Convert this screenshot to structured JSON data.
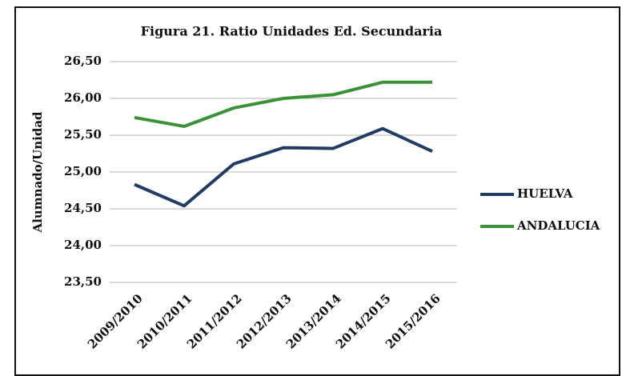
{
  "chart_data": {
    "type": "line",
    "title": "Figura 21. Ratio Unidades  Ed. Secundaria",
    "y_label": "Alumnado/Unidad",
    "categories": [
      "2009/2010",
      "2010/2011",
      "2011/2012",
      "2012/2013",
      "2013/2014",
      "2014/2015",
      "2015/2016"
    ],
    "series": [
      {
        "name": "HUELVA",
        "color": "#1f3d63",
        "values": [
          24.83,
          24.54,
          25.11,
          25.33,
          25.32,
          25.59,
          25.28
        ]
      },
      {
        "name": "ANDALUCIA",
        "color": "#3a9136",
        "values": [
          25.74,
          25.62,
          25.87,
          26.0,
          26.05,
          26.22,
          26.22
        ]
      }
    ],
    "ylim": [
      23.5,
      26.5
    ],
    "yticks": [
      {
        "value": 23.5,
        "label": "23,50"
      },
      {
        "value": 24.0,
        "label": "24,00"
      },
      {
        "value": 24.5,
        "label": "24,50"
      },
      {
        "value": 25.0,
        "label": "25,00"
      },
      {
        "value": 25.5,
        "label": "25,50"
      },
      {
        "value": 26.0,
        "label": "26,00"
      },
      {
        "value": 26.5,
        "label": "26,50"
      }
    ],
    "grid": true,
    "legend": "right"
  }
}
